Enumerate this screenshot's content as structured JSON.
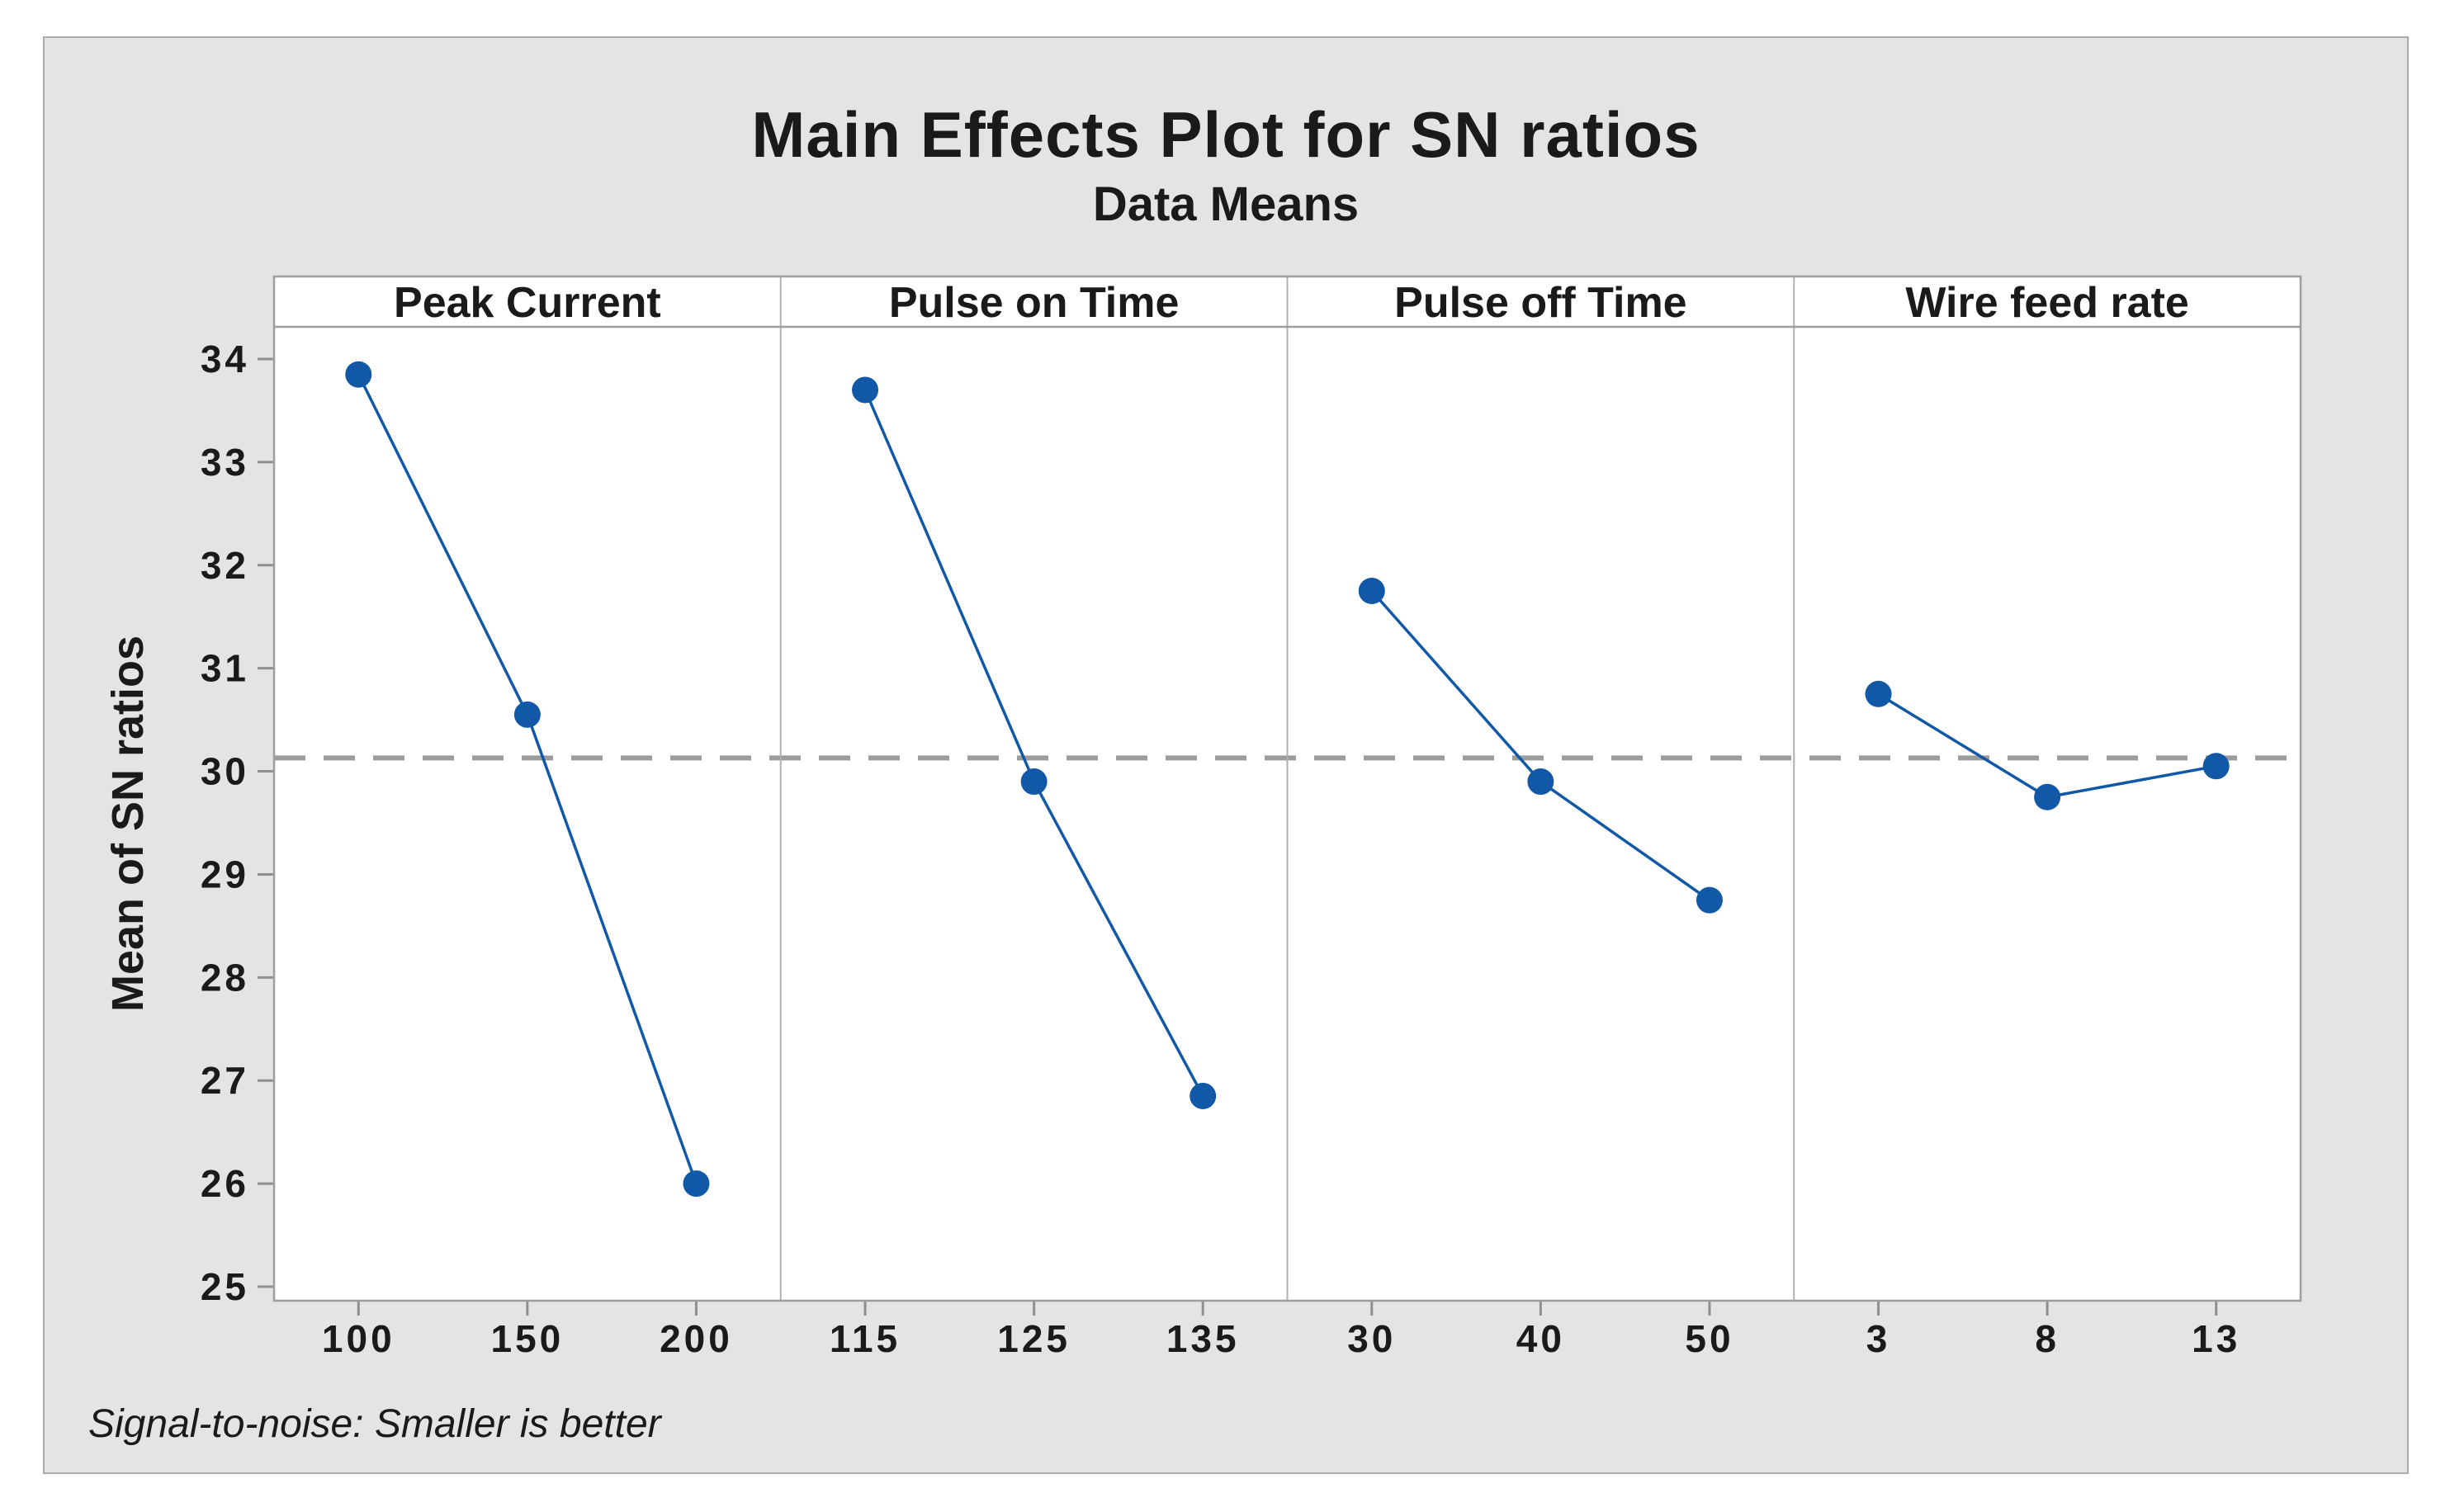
{
  "title": "Main Effects Plot for SN ratios",
  "subtitle": "Data Means",
  "footnote": "Signal-to-noise: Smaller is better",
  "chart_data": {
    "type": "line",
    "title": "Main Effects Plot for SN ratios",
    "subtitle": "Data Means",
    "ylabel": "Mean of SN ratios",
    "y_ticks": [
      34,
      33,
      32,
      31,
      30,
      29,
      28,
      27,
      26,
      25
    ],
    "ylim": [
      24.87,
      34.32
    ],
    "grid": false,
    "legend": "none",
    "reference_line": 30.13,
    "reference_line_style": "dashed",
    "panels": [
      {
        "label": "Peak Current",
        "categories": [
          "100",
          "150",
          "200"
        ],
        "values": [
          33.85,
          30.55,
          26.0
        ]
      },
      {
        "label": "Pulse on Time",
        "categories": [
          "115",
          "125",
          "135"
        ],
        "values": [
          33.7,
          29.9,
          26.85
        ]
      },
      {
        "label": "Pulse off Time",
        "categories": [
          "30",
          "40",
          "50"
        ],
        "values": [
          31.75,
          29.9,
          28.75
        ]
      },
      {
        "label": "Wire feed rate",
        "categories": [
          "3",
          "8",
          "13"
        ],
        "values": [
          30.75,
          29.75,
          30.05
        ]
      }
    ],
    "annotation": "Signal-to-noise: Smaller is better"
  },
  "colors": {
    "marker": "#1158a7",
    "series_line": "#1158a7",
    "reference_line": "#9c9c9c",
    "frame": "#9e9e9e",
    "divider": "#b0b0b0",
    "tick": "#8f8f8f",
    "card_background": "#e4e4e4",
    "plot_background": "#ffffff",
    "text": "#1a1a1a"
  }
}
